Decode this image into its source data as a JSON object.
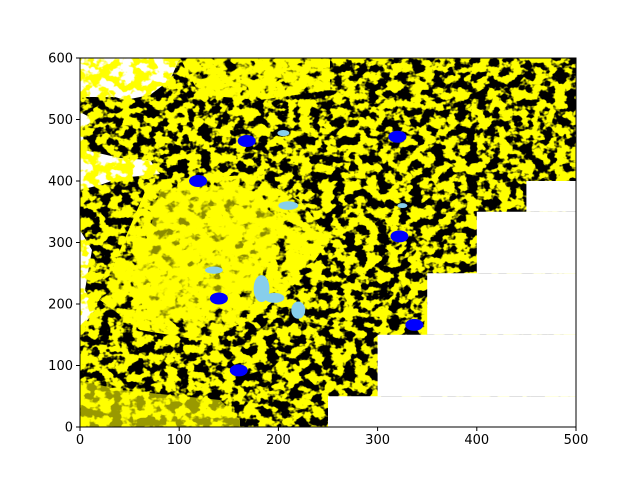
{
  "chart_data": {
    "type": "heatmap",
    "title": "",
    "xlabel": "",
    "ylabel": "",
    "xlim": [
      0,
      500
    ],
    "ylim": [
      0,
      600
    ],
    "xticks": [
      0,
      100,
      200,
      300,
      400,
      500
    ],
    "yticks": [
      0,
      100,
      200,
      300,
      400,
      500,
      600
    ],
    "grid": false,
    "legend": "none",
    "colors": {
      "land": "#000000",
      "vegetation": "#ffff00",
      "water_body": "#87ceeb",
      "marker": "#0000ff",
      "no_data": "#ffffff"
    },
    "no_data_region": [
      {
        "x": [
          250,
          500
        ],
        "y": [
          0,
          50
        ]
      },
      {
        "x": [
          300,
          500
        ],
        "y": [
          50,
          150
        ]
      },
      {
        "x": [
          350,
          500
        ],
        "y": [
          150,
          250
        ]
      },
      {
        "x": [
          400,
          500
        ],
        "y": [
          250,
          350
        ]
      },
      {
        "x": [
          450,
          500
        ],
        "y": [
          350,
          400
        ]
      }
    ],
    "markers": [
      {
        "x": 168,
        "y": 465
      },
      {
        "x": 320,
        "y": 472
      },
      {
        "x": 119,
        "y": 400
      },
      {
        "x": 322,
        "y": 310
      },
      {
        "x": 140,
        "y": 209
      },
      {
        "x": 337,
        "y": 166
      },
      {
        "x": 160,
        "y": 92
      }
    ],
    "water_bodies": [
      {
        "x": 135,
        "y": 255,
        "rx": 9,
        "ry": 6
      },
      {
        "x": 183,
        "y": 225,
        "rx": 8,
        "ry": 22
      },
      {
        "x": 196,
        "y": 210,
        "rx": 10,
        "ry": 8
      },
      {
        "x": 220,
        "y": 190,
        "rx": 7,
        "ry": 14
      },
      {
        "x": 210,
        "y": 360,
        "rx": 10,
        "ry": 7
      },
      {
        "x": 325,
        "y": 360,
        "rx": 5,
        "ry": 4
      },
      {
        "x": 205,
        "y": 478,
        "rx": 6,
        "ry": 5
      }
    ]
  }
}
